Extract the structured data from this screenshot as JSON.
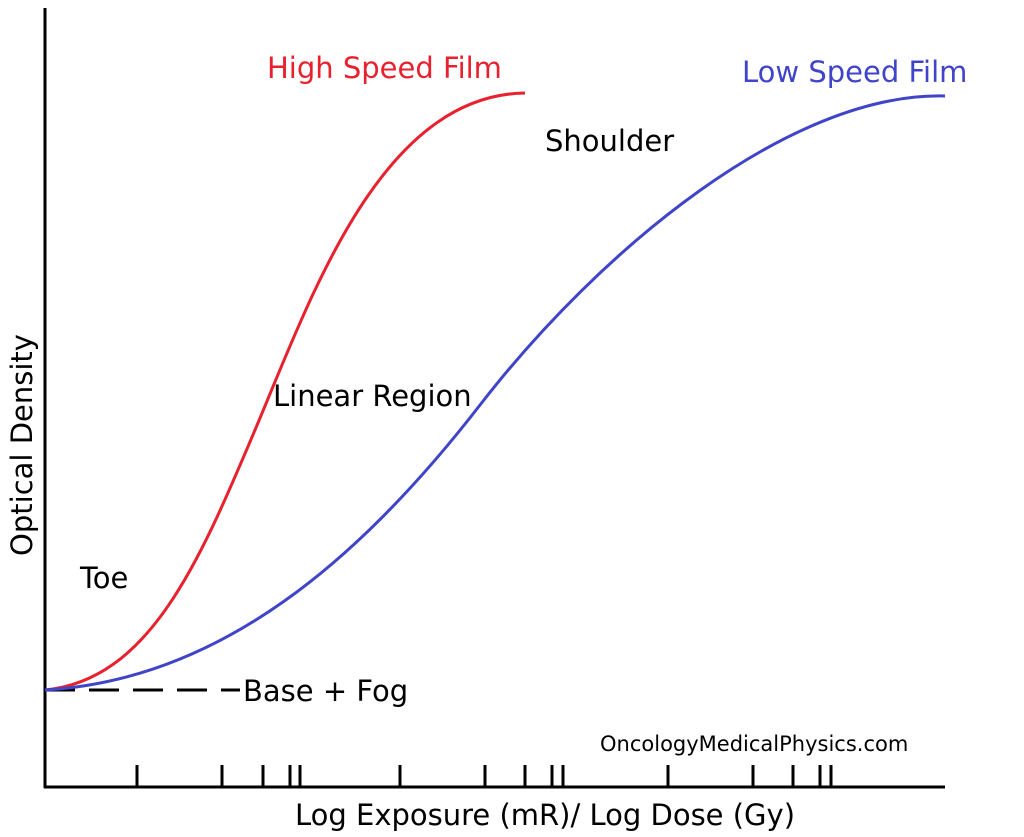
{
  "labels": {
    "high_speed": "High Speed Film",
    "low_speed": "Low Speed Film",
    "shoulder": "Shoulder",
    "linear": "Linear Region",
    "toe": "Toe",
    "base_fog": "Base + Fog",
    "source": "OncologyMedicalPhysics.com"
  },
  "axes": {
    "y_label": "Optical Density",
    "x_label": "Log Exposure (mR)/ Log Dose (Gy)"
  }
}
